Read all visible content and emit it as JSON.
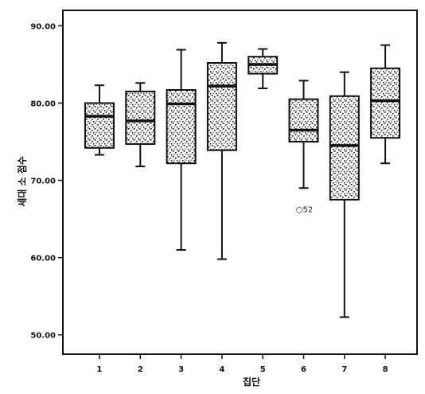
{
  "chart_data": {
    "type": "box",
    "xlabel": "집단",
    "ylabel": "세대 소 점수",
    "ylim": [
      47.5,
      92.0
    ],
    "yticks": [
      50.0,
      60.0,
      70.0,
      80.0,
      90.0
    ],
    "ytick_labels": [
      "50.00",
      "60.00",
      "70.00",
      "80.00",
      "90.00"
    ],
    "categories": [
      "1",
      "2",
      "3",
      "4",
      "5",
      "6",
      "7",
      "8"
    ],
    "boxes": [
      {
        "category": "1",
        "whisker_low": 73.3,
        "q1": 74.2,
        "median": 78.3,
        "q3": 80.0,
        "whisker_high": 82.3
      },
      {
        "category": "2",
        "whisker_low": 71.8,
        "q1": 74.7,
        "median": 77.7,
        "q3": 81.5,
        "whisker_high": 82.6
      },
      {
        "category": "3",
        "whisker_low": 61.0,
        "q1": 72.2,
        "median": 79.9,
        "q3": 81.7,
        "whisker_high": 86.9
      },
      {
        "category": "4",
        "whisker_low": 59.8,
        "q1": 73.9,
        "median": 82.2,
        "q3": 85.2,
        "whisker_high": 87.8
      },
      {
        "category": "5",
        "whisker_low": 81.9,
        "q1": 83.8,
        "median": 85.0,
        "q3": 86.0,
        "whisker_high": 87.0
      },
      {
        "category": "6",
        "whisker_low": 69.0,
        "q1": 75.0,
        "median": 76.5,
        "q3": 80.5,
        "whisker_high": 82.9
      },
      {
        "category": "7",
        "whisker_low": 52.3,
        "q1": 67.5,
        "median": 74.5,
        "q3": 80.9,
        "whisker_high": 84.0
      },
      {
        "category": "8",
        "whisker_low": 72.2,
        "q1": 75.5,
        "median": 80.3,
        "q3": 84.5,
        "whisker_high": 87.5
      }
    ],
    "outliers": [
      {
        "category": "6",
        "value": 66.3,
        "label": "○52"
      }
    ],
    "grid": false,
    "legend": "none"
  }
}
